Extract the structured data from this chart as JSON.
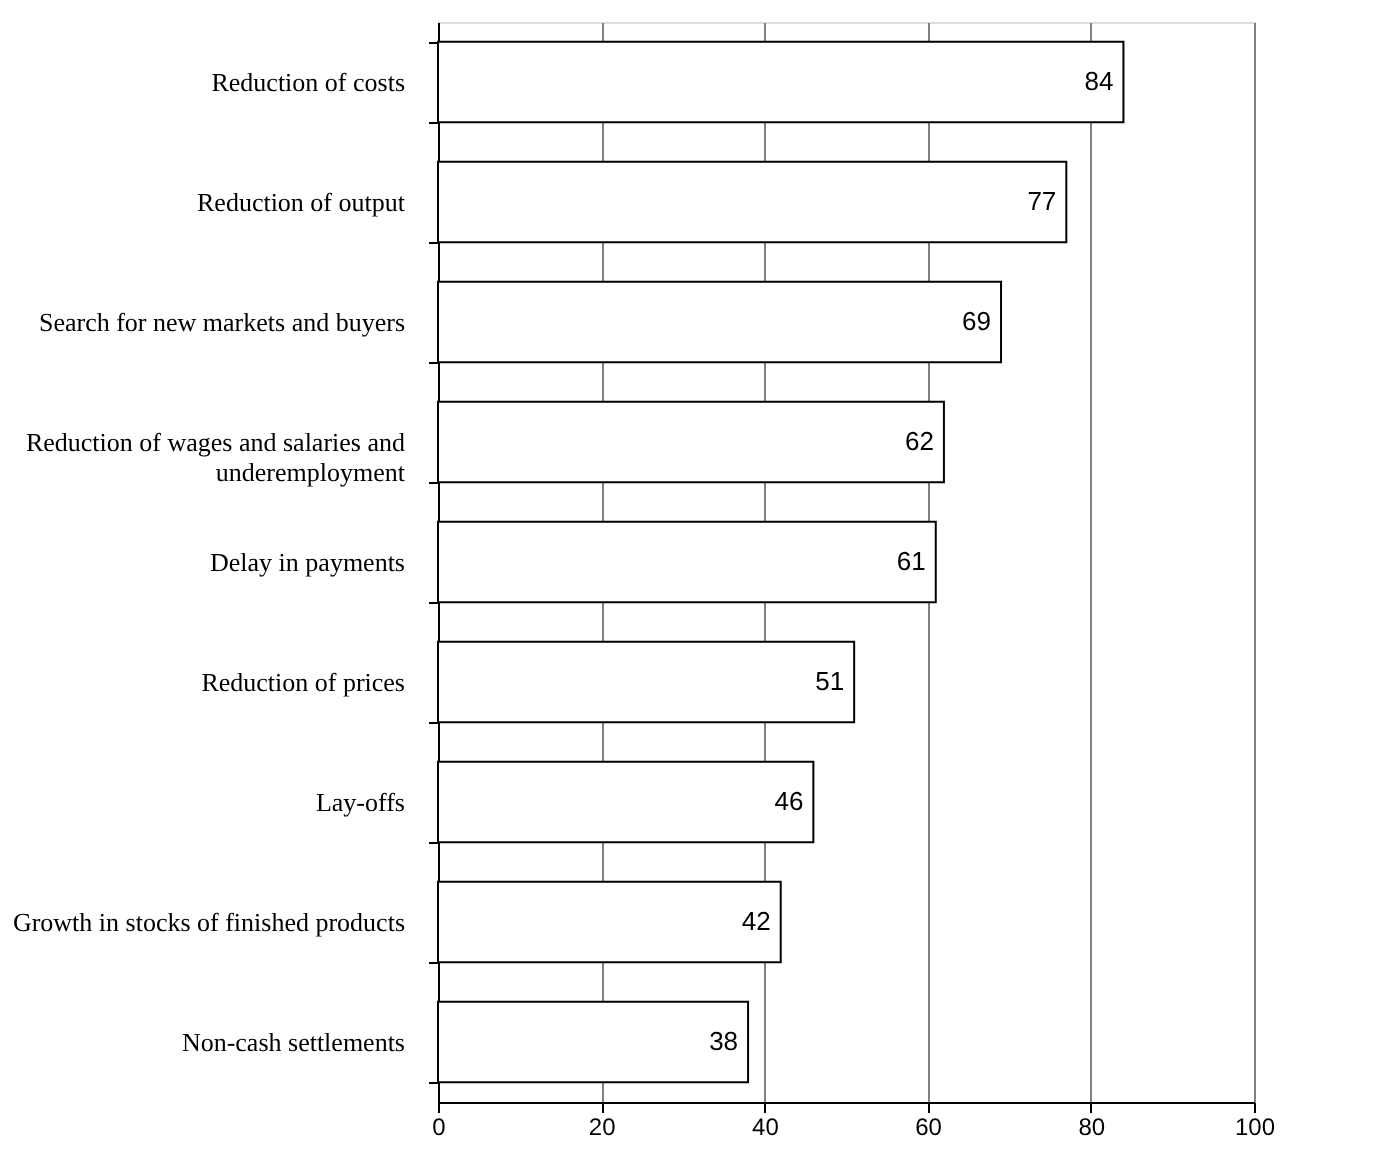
{
  "chart_data": {
    "type": "bar",
    "orientation": "horizontal",
    "categories": [
      "Reduction of costs",
      "Reduction of output",
      "Search for new markets and buyers",
      "Reduction of wages and salaries and underemployment",
      "Delay in payments",
      "Reduction of prices",
      "Lay-offs",
      "Growth in stocks of finished products",
      "Non-cash settlements"
    ],
    "values": [
      84,
      77,
      69,
      62,
      61,
      51,
      46,
      42,
      38
    ],
    "color": "#ffffff",
    "xlim": [
      0,
      100
    ],
    "xticks": [
      0,
      20,
      40,
      60,
      80,
      100
    ],
    "grid": "x",
    "data_labels": true
  }
}
